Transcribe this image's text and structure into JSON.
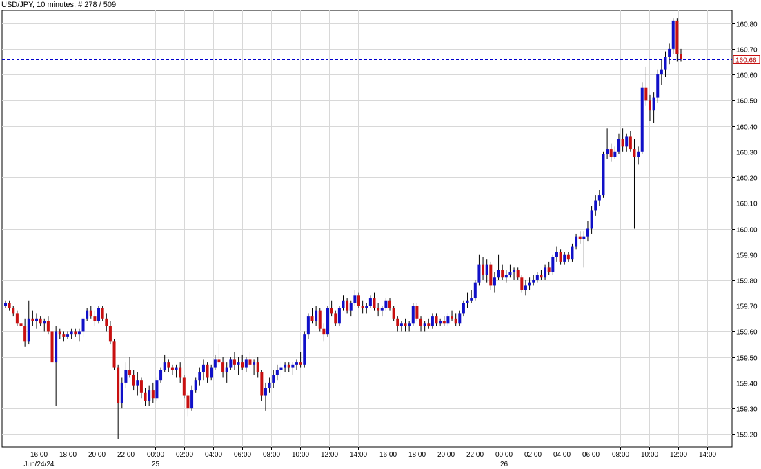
{
  "header": {
    "symbol": "USD/JPY",
    "interval": ", 10 minutes",
    "bar_count": ", # 278 / 509"
  },
  "colors": {
    "up": "#1010c8",
    "down": "#c81010",
    "grid": "#d8d8d8",
    "current_line": "#0000cc",
    "current_label_border": "#c81010"
  },
  "chart_data": {
    "type": "candlestick",
    "title": "USD/JPY , 10 minutes, # 278 / 509",
    "bar_interval_minutes": 10,
    "ylim": [
      159.15,
      160.85
    ],
    "yticks": [
      159.2,
      159.3,
      159.4,
      159.5,
      159.6,
      159.7,
      159.8,
      159.9,
      160.0,
      160.1,
      160.2,
      160.3,
      160.4,
      160.5,
      160.6,
      160.7,
      160.8
    ],
    "ytick_labels": [
      "159.20",
      "159.30",
      "159.40",
      "159.50",
      "159.60",
      "159.70",
      "159.80",
      "159.90",
      "160.00",
      "160.10",
      "160.20",
      "160.30",
      "160.40",
      "160.50",
      "160.60",
      "160.70",
      "160.80"
    ],
    "xticks": [
      {
        "label": "16:00",
        "date": "Jun/24/24"
      },
      {
        "label": "18:00",
        "date": ""
      },
      {
        "label": "20:00",
        "date": ""
      },
      {
        "label": "22:00",
        "date": ""
      },
      {
        "label": "00:00",
        "date": "25"
      },
      {
        "label": "02:00",
        "date": ""
      },
      {
        "label": "04:00",
        "date": ""
      },
      {
        "label": "06:00",
        "date": ""
      },
      {
        "label": "08:00",
        "date": ""
      },
      {
        "label": "10:00",
        "date": ""
      },
      {
        "label": "12:00",
        "date": ""
      },
      {
        "label": "14:00",
        "date": ""
      },
      {
        "label": "16:00",
        "date": ""
      },
      {
        "label": "18:00",
        "date": ""
      },
      {
        "label": "20:00",
        "date": ""
      },
      {
        "label": "22:00",
        "date": ""
      },
      {
        "label": "00:00",
        "date": "26"
      },
      {
        "label": "02:00",
        "date": ""
      },
      {
        "label": "04:00",
        "date": ""
      },
      {
        "label": "06:00",
        "date": ""
      },
      {
        "label": "08:00",
        "date": ""
      },
      {
        "label": "10:00",
        "date": ""
      },
      {
        "label": "12:00",
        "date": ""
      },
      {
        "label": "14:00",
        "date": ""
      }
    ],
    "current_price": 160.66,
    "current_price_label": "160.66",
    "grid": true,
    "candles": [
      [
        159.7,
        159.72,
        159.69,
        159.71
      ],
      [
        159.71,
        159.72,
        159.68,
        159.69
      ],
      [
        159.69,
        159.7,
        159.66,
        159.67
      ],
      [
        159.67,
        159.68,
        159.62,
        159.63
      ],
      [
        159.63,
        159.66,
        159.58,
        159.62
      ],
      [
        159.62,
        159.65,
        159.54,
        159.56
      ],
      [
        159.56,
        159.72,
        159.55,
        159.65
      ],
      [
        159.65,
        159.68,
        159.62,
        159.64
      ],
      [
        159.64,
        159.67,
        159.61,
        159.65
      ],
      [
        159.65,
        159.66,
        159.62,
        159.63
      ],
      [
        159.63,
        159.65,
        159.6,
        159.64
      ],
      [
        159.64,
        159.66,
        159.59,
        159.6
      ],
      [
        159.6,
        159.62,
        159.47,
        159.48
      ],
      [
        159.48,
        159.62,
        159.31,
        159.6
      ],
      [
        159.6,
        159.61,
        159.57,
        159.59
      ],
      [
        159.59,
        159.6,
        159.56,
        159.58
      ],
      [
        159.58,
        159.6,
        159.57,
        159.59
      ],
      [
        159.59,
        159.61,
        159.57,
        159.6
      ],
      [
        159.6,
        159.61,
        159.58,
        159.59
      ],
      [
        159.59,
        159.61,
        159.56,
        159.6
      ],
      [
        159.6,
        159.66,
        159.58,
        159.65
      ],
      [
        159.65,
        159.69,
        159.64,
        159.68
      ],
      [
        159.68,
        159.7,
        159.65,
        159.66
      ],
      [
        159.66,
        159.68,
        159.62,
        159.64
      ],
      [
        159.64,
        159.7,
        159.63,
        159.69
      ],
      [
        159.69,
        159.7,
        159.64,
        159.65
      ],
      [
        159.65,
        159.67,
        159.6,
        159.62
      ],
      [
        159.62,
        159.64,
        159.55,
        159.56
      ],
      [
        159.56,
        159.57,
        159.45,
        159.46
      ],
      [
        159.46,
        159.47,
        159.18,
        159.32
      ],
      [
        159.32,
        159.42,
        159.3,
        159.4
      ],
      [
        159.4,
        159.48,
        159.38,
        159.45
      ],
      [
        159.45,
        159.5,
        159.42,
        159.43
      ],
      [
        159.43,
        159.45,
        159.37,
        159.39
      ],
      [
        159.39,
        159.44,
        159.35,
        159.41
      ],
      [
        159.41,
        159.42,
        159.34,
        159.36
      ],
      [
        159.36,
        159.38,
        159.31,
        159.33
      ],
      [
        159.33,
        159.39,
        159.31,
        159.37
      ],
      [
        159.37,
        159.4,
        159.32,
        159.34
      ],
      [
        159.34,
        159.42,
        159.33,
        159.41
      ],
      [
        159.41,
        159.46,
        159.4,
        159.45
      ],
      [
        159.45,
        159.51,
        159.44,
        159.48
      ],
      [
        159.48,
        159.49,
        159.44,
        159.46
      ],
      [
        159.46,
        159.47,
        159.43,
        159.45
      ],
      [
        159.45,
        159.47,
        159.42,
        159.46
      ],
      [
        159.46,
        159.48,
        159.4,
        159.42
      ],
      [
        159.42,
        159.43,
        159.34,
        159.35
      ],
      [
        159.35,
        159.36,
        159.27,
        159.3
      ],
      [
        159.3,
        159.39,
        159.29,
        159.37
      ],
      [
        159.37,
        159.42,
        159.36,
        159.41
      ],
      [
        159.41,
        159.46,
        159.39,
        159.44
      ],
      [
        159.44,
        159.49,
        159.41,
        159.47
      ],
      [
        159.47,
        159.48,
        159.4,
        159.42
      ],
      [
        159.42,
        159.47,
        159.41,
        159.46
      ],
      [
        159.46,
        159.51,
        159.45,
        159.49
      ],
      [
        159.49,
        159.55,
        159.47,
        159.48
      ],
      [
        159.48,
        159.5,
        159.42,
        159.44
      ],
      [
        159.44,
        159.48,
        159.4,
        159.46
      ],
      [
        159.46,
        159.5,
        159.45,
        159.49
      ],
      [
        159.49,
        159.52,
        159.45,
        159.47
      ],
      [
        159.47,
        159.5,
        159.43,
        159.48
      ],
      [
        159.48,
        159.51,
        159.45,
        159.46
      ],
      [
        159.46,
        159.5,
        159.44,
        159.49
      ],
      [
        159.49,
        159.52,
        159.46,
        159.47
      ],
      [
        159.47,
        159.49,
        159.43,
        159.48
      ],
      [
        159.48,
        159.5,
        159.42,
        159.44
      ],
      [
        159.44,
        159.45,
        159.33,
        159.35
      ],
      [
        159.35,
        159.4,
        159.29,
        159.38
      ],
      [
        159.38,
        159.42,
        159.36,
        159.4
      ],
      [
        159.4,
        159.45,
        159.38,
        159.43
      ],
      [
        159.43,
        159.47,
        159.41,
        159.45
      ],
      [
        159.45,
        159.48,
        159.42,
        159.46
      ],
      [
        159.46,
        159.48,
        159.44,
        159.47
      ],
      [
        159.47,
        159.48,
        159.44,
        159.46
      ],
      [
        159.46,
        159.48,
        159.43,
        159.47
      ],
      [
        159.47,
        159.49,
        159.45,
        159.48
      ],
      [
        159.48,
        159.52,
        159.46,
        159.47
      ],
      [
        159.47,
        159.6,
        159.46,
        159.59
      ],
      [
        159.59,
        159.67,
        159.57,
        159.66
      ],
      [
        159.66,
        159.69,
        159.63,
        159.64
      ],
      [
        159.64,
        159.7,
        159.62,
        159.68
      ],
      [
        159.68,
        159.69,
        159.6,
        159.61
      ],
      [
        159.61,
        159.63,
        159.56,
        159.59
      ],
      [
        159.59,
        159.7,
        159.58,
        159.69
      ],
      [
        159.69,
        159.72,
        159.66,
        159.67
      ],
      [
        159.67,
        159.68,
        159.62,
        159.63
      ],
      [
        159.63,
        159.7,
        159.62,
        159.69
      ],
      [
        159.69,
        159.74,
        159.68,
        159.72
      ],
      [
        159.72,
        159.73,
        159.67,
        159.68
      ],
      [
        159.68,
        159.72,
        159.66,
        159.71
      ],
      [
        159.71,
        159.76,
        159.7,
        159.74
      ],
      [
        159.74,
        159.75,
        159.69,
        159.7
      ],
      [
        159.7,
        159.72,
        159.67,
        159.69
      ],
      [
        159.69,
        159.71,
        159.67,
        159.7
      ],
      [
        159.7,
        159.74,
        159.69,
        159.73
      ],
      [
        159.73,
        159.75,
        159.68,
        159.69
      ],
      [
        159.69,
        159.71,
        159.66,
        159.68
      ],
      [
        159.68,
        159.7,
        159.66,
        159.69
      ],
      [
        159.69,
        159.73,
        159.68,
        159.72
      ],
      [
        159.72,
        159.73,
        159.68,
        159.69
      ],
      [
        159.69,
        159.7,
        159.64,
        159.65
      ],
      [
        159.65,
        159.66,
        159.6,
        159.62
      ],
      [
        159.62,
        159.64,
        159.6,
        159.63
      ],
      [
        159.63,
        159.65,
        159.6,
        159.62
      ],
      [
        159.62,
        159.64,
        159.6,
        159.63
      ],
      [
        159.63,
        159.71,
        159.62,
        159.7
      ],
      [
        159.7,
        159.71,
        159.64,
        159.65
      ],
      [
        159.65,
        159.66,
        159.6,
        159.62
      ],
      [
        159.62,
        159.64,
        159.6,
        159.63
      ],
      [
        159.63,
        159.65,
        159.61,
        159.62
      ],
      [
        159.62,
        159.67,
        159.61,
        159.66
      ],
      [
        159.66,
        159.67,
        159.62,
        159.63
      ],
      [
        159.63,
        159.65,
        159.62,
        159.64
      ],
      [
        159.64,
        159.66,
        159.62,
        159.63
      ],
      [
        159.63,
        159.67,
        159.62,
        159.66
      ],
      [
        159.66,
        159.68,
        159.64,
        159.65
      ],
      [
        159.65,
        159.67,
        159.62,
        159.63
      ],
      [
        159.63,
        159.68,
        159.62,
        159.67
      ],
      [
        159.67,
        159.72,
        159.66,
        159.71
      ],
      [
        159.71,
        159.75,
        159.69,
        159.72
      ],
      [
        159.72,
        159.76,
        159.71,
        159.73
      ],
      [
        159.73,
        159.8,
        159.72,
        159.79
      ],
      [
        159.79,
        159.9,
        159.78,
        159.86
      ],
      [
        159.86,
        159.89,
        159.8,
        159.82
      ],
      [
        159.82,
        159.88,
        159.79,
        159.86
      ],
      [
        159.86,
        159.87,
        159.76,
        159.78
      ],
      [
        159.78,
        159.83,
        159.75,
        159.81
      ],
      [
        159.81,
        159.9,
        159.8,
        159.84
      ],
      [
        159.84,
        159.86,
        159.8,
        159.81
      ],
      [
        159.81,
        159.84,
        159.79,
        159.82
      ],
      [
        159.82,
        159.86,
        159.81,
        159.83
      ],
      [
        159.83,
        159.85,
        159.8,
        159.84
      ],
      [
        159.84,
        159.85,
        159.8,
        159.81
      ],
      [
        159.81,
        159.82,
        159.75,
        159.76
      ],
      [
        159.76,
        159.8,
        159.74,
        159.78
      ],
      [
        159.78,
        159.81,
        159.76,
        159.79
      ],
      [
        159.79,
        159.82,
        159.78,
        159.8
      ],
      [
        159.8,
        159.83,
        159.79,
        159.82
      ],
      [
        159.82,
        159.84,
        159.8,
        159.81
      ],
      [
        159.81,
        159.86,
        159.8,
        159.85
      ],
      [
        159.85,
        159.87,
        159.82,
        159.83
      ],
      [
        159.83,
        159.9,
        159.82,
        159.89
      ],
      [
        159.89,
        159.93,
        159.87,
        159.91
      ],
      [
        159.91,
        159.92,
        159.86,
        159.87
      ],
      [
        159.87,
        159.91,
        159.86,
        159.9
      ],
      [
        159.9,
        159.91,
        159.87,
        159.88
      ],
      [
        159.88,
        159.94,
        159.87,
        159.93
      ],
      [
        159.93,
        159.98,
        159.92,
        159.97
      ],
      [
        159.97,
        159.99,
        159.94,
        159.96
      ],
      [
        159.96,
        159.99,
        159.85,
        159.97
      ],
      [
        159.97,
        160.03,
        159.95,
        160.0
      ],
      [
        160.0,
        160.09,
        159.98,
        160.07
      ],
      [
        160.07,
        160.13,
        160.05,
        160.11
      ],
      [
        160.11,
        160.15,
        160.09,
        160.13
      ],
      [
        160.13,
        160.3,
        160.12,
        160.29
      ],
      [
        160.29,
        160.39,
        160.27,
        160.31
      ],
      [
        160.31,
        160.33,
        160.26,
        160.28
      ],
      [
        160.28,
        160.32,
        160.27,
        160.3
      ],
      [
        160.3,
        160.37,
        160.29,
        160.35
      ],
      [
        160.35,
        160.39,
        160.3,
        160.32
      ],
      [
        160.32,
        160.37,
        160.3,
        160.36
      ],
      [
        160.36,
        160.38,
        160.3,
        160.31
      ],
      [
        160.31,
        160.35,
        160.0,
        160.28
      ],
      [
        160.28,
        160.32,
        160.25,
        160.3
      ],
      [
        160.3,
        160.57,
        160.29,
        160.55
      ],
      [
        160.55,
        160.63,
        160.48,
        160.5
      ],
      [
        160.5,
        160.52,
        160.42,
        160.46
      ],
      [
        160.46,
        160.53,
        160.41,
        160.51
      ],
      [
        160.51,
        160.62,
        160.49,
        160.6
      ],
      [
        160.6,
        160.66,
        160.56,
        160.62
      ],
      [
        160.62,
        160.69,
        160.59,
        160.67
      ],
      [
        160.67,
        160.72,
        160.64,
        160.7
      ],
      [
        160.7,
        160.82,
        160.68,
        160.81
      ],
      [
        160.81,
        160.82,
        160.65,
        160.68
      ],
      [
        160.68,
        160.7,
        160.65,
        160.66
      ]
    ]
  }
}
